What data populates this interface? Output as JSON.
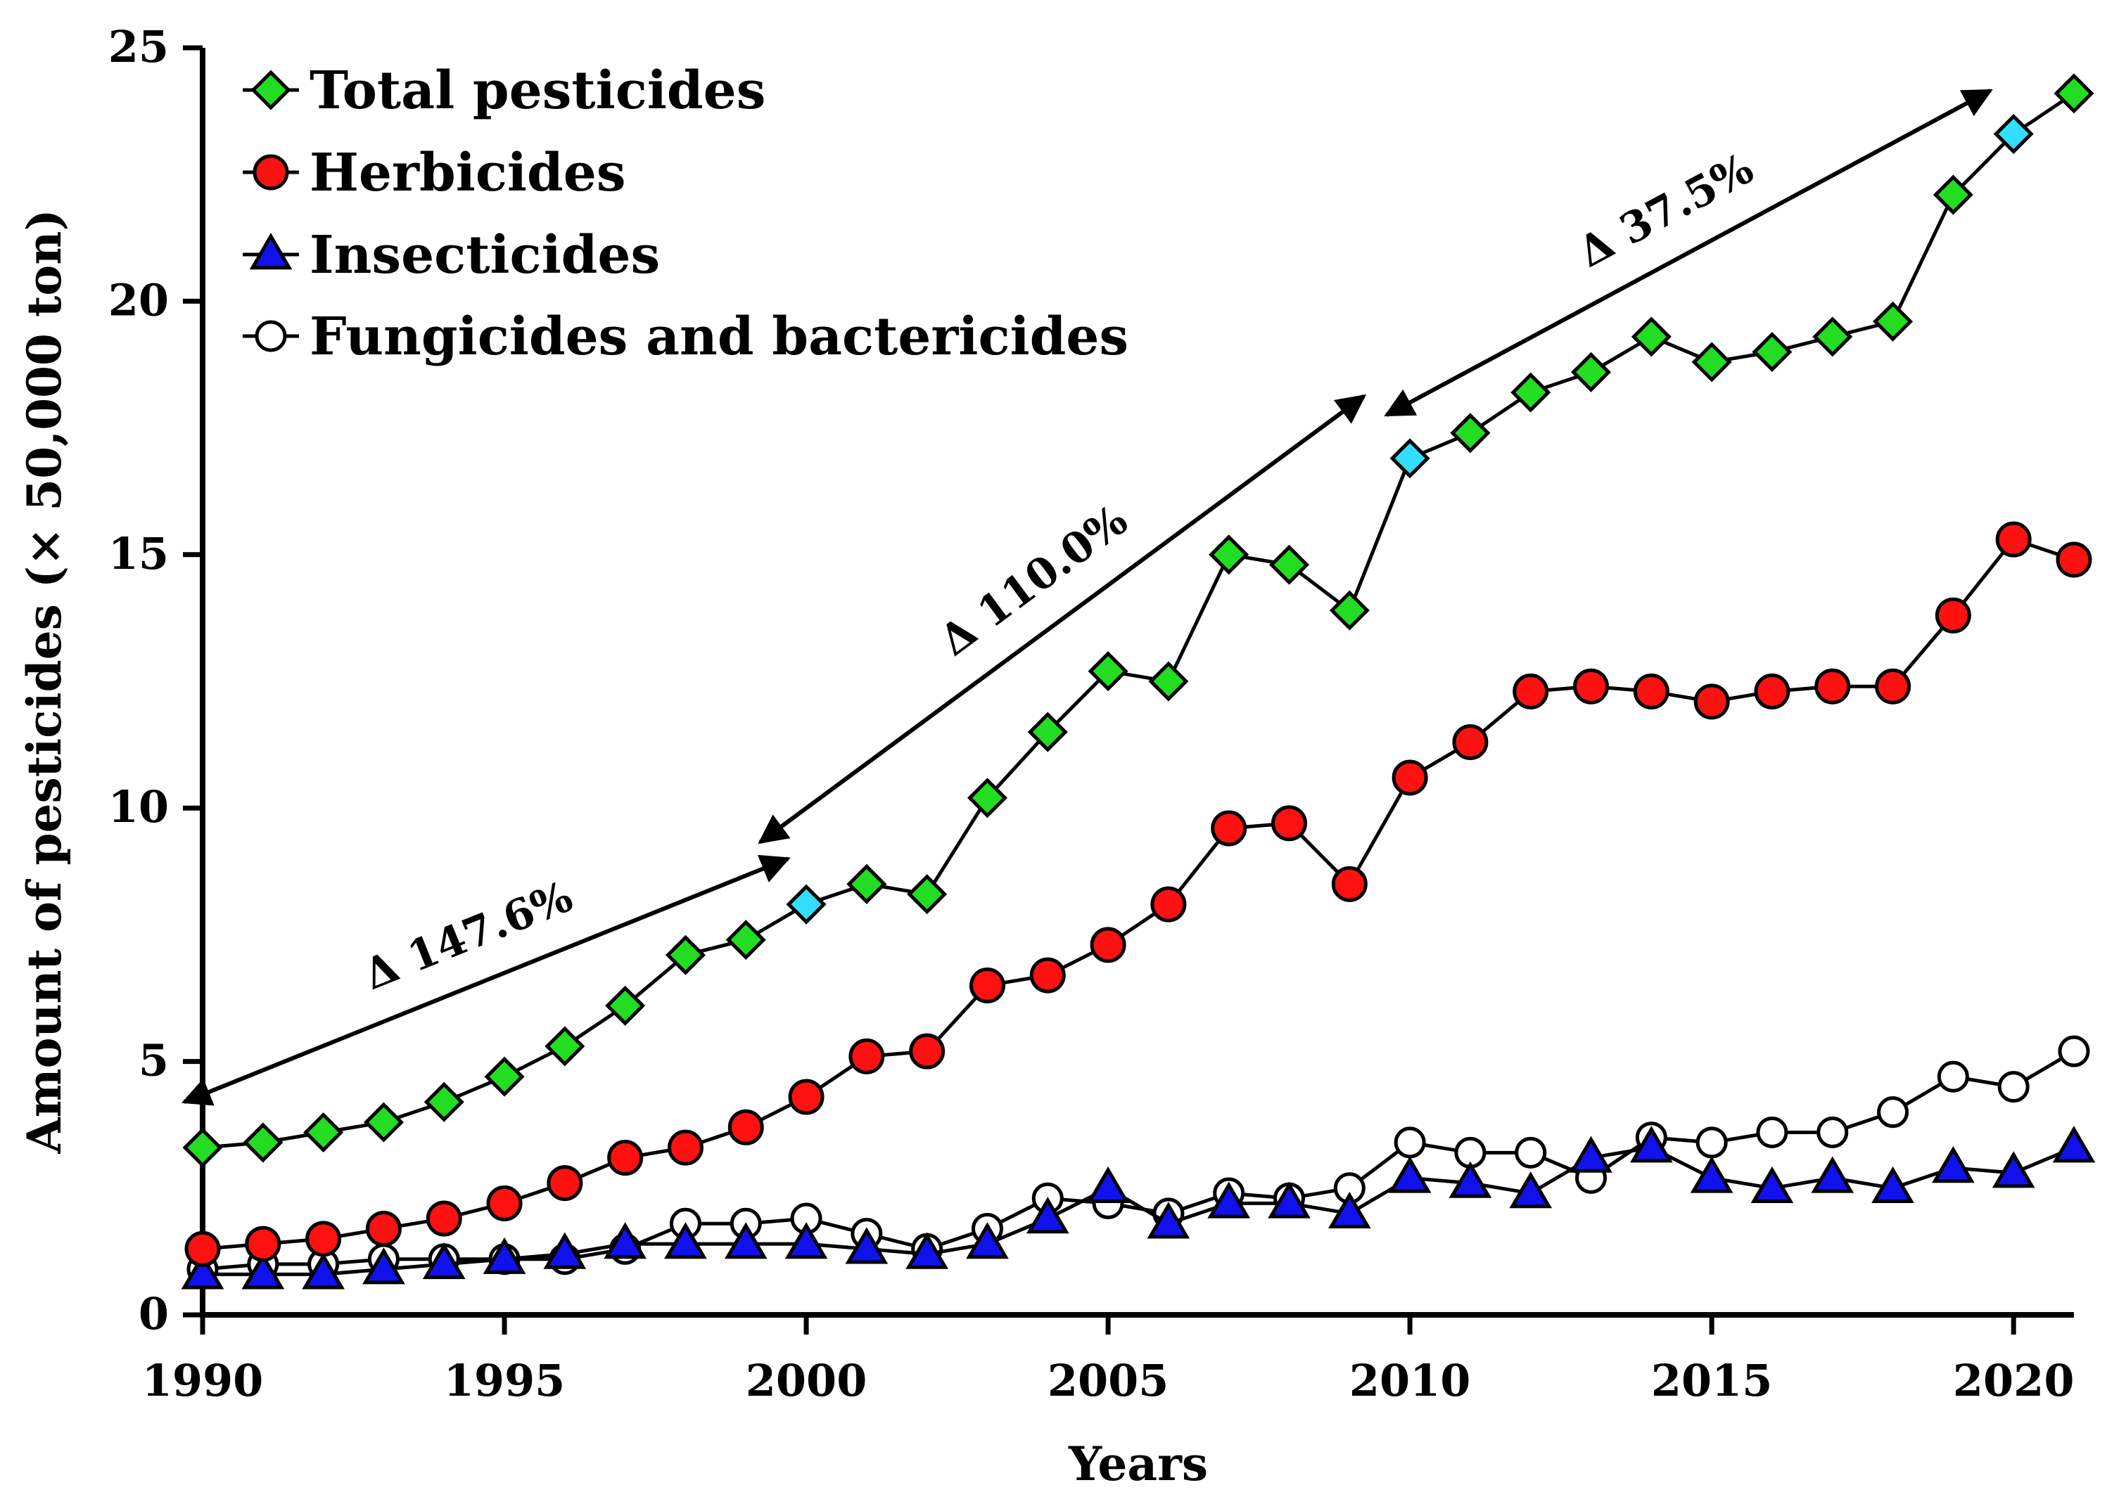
{
  "chart_data": {
    "type": "line",
    "title": "",
    "xlabel": "Years",
    "ylabel": "Amount of pesticides (× 50,000 ton)",
    "xlim": [
      1990,
      2021
    ],
    "ylim": [
      0,
      25
    ],
    "xticks": [
      1990,
      1995,
      2000,
      2005,
      2010,
      2015,
      2020
    ],
    "yticks": [
      0,
      5,
      10,
      15,
      20,
      25
    ],
    "legend_position": "top-left",
    "x": [
      1990,
      1991,
      1992,
      1993,
      1994,
      1995,
      1996,
      1997,
      1998,
      1999,
      2000,
      2001,
      2002,
      2003,
      2004,
      2005,
      2006,
      2007,
      2008,
      2009,
      2010,
      2011,
      2012,
      2013,
      2014,
      2015,
      2016,
      2017,
      2018,
      2019,
      2020,
      2021
    ],
    "series": [
      {
        "name": "Total pesticides",
        "marker": "diamond",
        "color": "#22dd22",
        "highlight_color": "#33ddff",
        "highlight_years": [
          2000,
          2010,
          2020
        ],
        "values": [
          3.3,
          3.4,
          3.6,
          3.8,
          4.2,
          4.7,
          5.3,
          6.1,
          7.1,
          7.4,
          8.1,
          8.5,
          8.3,
          10.2,
          11.5,
          12.7,
          12.5,
          15.0,
          14.8,
          13.9,
          16.9,
          17.4,
          18.2,
          18.6,
          19.3,
          18.8,
          19.0,
          19.3,
          19.6,
          22.1,
          23.3,
          24.1
        ]
      },
      {
        "name": "Herbicides",
        "marker": "circle",
        "color": "#ff1111",
        "values": [
          1.3,
          1.4,
          1.5,
          1.7,
          1.9,
          2.2,
          2.6,
          3.1,
          3.3,
          3.7,
          4.3,
          5.1,
          5.2,
          6.5,
          6.7,
          7.3,
          8.1,
          9.6,
          9.7,
          8.5,
          10.6,
          11.3,
          12.3,
          12.4,
          12.3,
          12.1,
          12.3,
          12.4,
          12.4,
          13.8,
          15.3,
          14.9
        ]
      },
      {
        "name": "Insecticides",
        "marker": "triangle",
        "color": "#1111ee",
        "values": [
          0.8,
          0.8,
          0.8,
          0.9,
          1.0,
          1.1,
          1.2,
          1.4,
          1.4,
          1.4,
          1.4,
          1.3,
          1.2,
          1.4,
          1.9,
          2.5,
          1.8,
          2.2,
          2.2,
          2.0,
          2.7,
          2.6,
          2.4,
          3.1,
          3.3,
          2.7,
          2.5,
          2.7,
          2.5,
          2.9,
          2.8,
          3.3
        ]
      },
      {
        "name": "Fungicides and bactericides",
        "marker": "open-circle",
        "color": "#ffffff",
        "values": [
          0.9,
          1.0,
          1.0,
          1.1,
          1.1,
          1.1,
          1.1,
          1.3,
          1.8,
          1.8,
          1.9,
          1.6,
          1.3,
          1.7,
          2.3,
          2.2,
          2.0,
          2.4,
          2.3,
          2.5,
          3.4,
          3.2,
          3.2,
          2.7,
          3.5,
          3.4,
          3.6,
          3.6,
          4.0,
          4.7,
          4.5,
          5.2
        ]
      }
    ],
    "annotations": [
      {
        "text": "Δ 147.6%",
        "from": [
          1990,
          3.3
        ],
        "to": [
          2000,
          8.1
        ]
      },
      {
        "text": "Δ 110.0%",
        "from": [
          2000,
          8.1
        ],
        "to": [
          2010,
          16.9
        ]
      },
      {
        "text": "Δ 37.5%",
        "from": [
          2010,
          16.9
        ],
        "to": [
          2020,
          23.3
        ]
      }
    ]
  }
}
